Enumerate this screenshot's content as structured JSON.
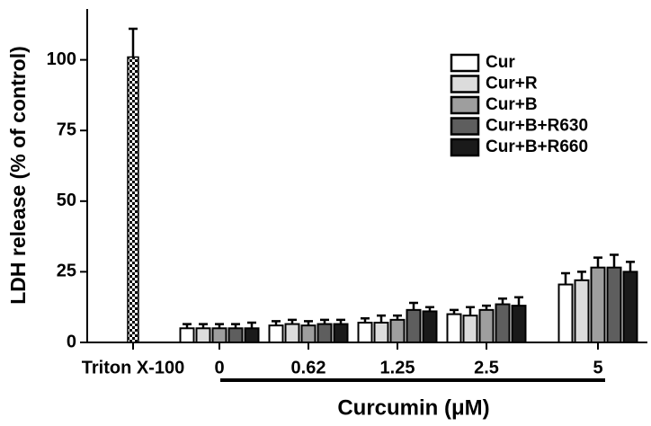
{
  "chart_data": {
    "type": "bar",
    "y_label": "LDH release (% of control)",
    "x_label": "Curcumin (μM)",
    "control_label": "Triton X-100",
    "control_value": 101,
    "control_error": 10,
    "categories": [
      "0",
      "0.62",
      "1.25",
      "2.5",
      "5"
    ],
    "series": [
      {
        "name": "Cur",
        "color": "#ffffff",
        "values": [
          5,
          6,
          7,
          10,
          20.5
        ],
        "errors": [
          1.5,
          1.5,
          1.5,
          1.5,
          4
        ]
      },
      {
        "name": "Cur+R",
        "color": "#dcdcdc",
        "values": [
          5,
          6.5,
          7,
          9.5,
          22
        ],
        "errors": [
          1.5,
          1.5,
          2.5,
          3,
          3
        ]
      },
      {
        "name": "Cur+B",
        "color": "#9e9e9e",
        "values": [
          5,
          6,
          8,
          11.5,
          26.5
        ],
        "errors": [
          1.5,
          1.5,
          1.5,
          1.5,
          3.5
        ]
      },
      {
        "name": "Cur+B+R630",
        "color": "#5e5e5e",
        "values": [
          5,
          6.5,
          11.5,
          13.5,
          26.5
        ],
        "errors": [
          1.5,
          1.5,
          2.5,
          2,
          4.5
        ]
      },
      {
        "name": "Cur+B+R660",
        "color": "#1a1a1a",
        "values": [
          5,
          6.5,
          11,
          13,
          25
        ],
        "errors": [
          2,
          1.5,
          1.5,
          3,
          3.5
        ]
      }
    ],
    "ylim": [
      0,
      118
    ],
    "yticks": [
      0,
      25,
      50,
      75,
      100
    ],
    "legend": "upper right"
  }
}
